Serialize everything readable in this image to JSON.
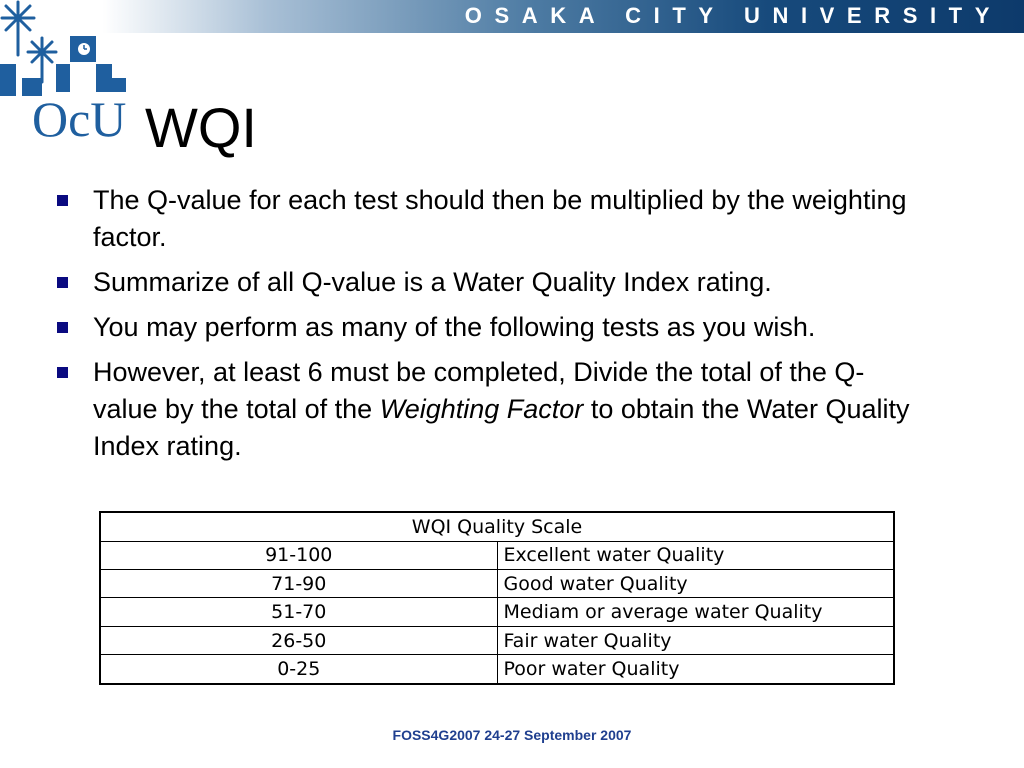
{
  "header": {
    "banner_text": "OSAKA CITY UNIVERSITY",
    "logo_text": "OcU",
    "logo_icon": "osaka-city-university-logo"
  },
  "slide": {
    "title": "WQI",
    "bullets": [
      {
        "text": "The Q-value for each test should then be multiplied by the weighting factor."
      },
      {
        "text": "Summarize of all Q-value is a Water Quality Index rating."
      },
      {
        "text": "You may perform as many of the following tests as you wish."
      },
      {
        "before": "However, at least 6 must be completed, Divide the total of the Q-value by the total of the ",
        "emphasis": "Weighting Factor",
        "after": " to obtain the Water Quality Index rating."
      }
    ]
  },
  "table": {
    "header": "WQI Quality Scale",
    "rows": [
      {
        "range": "91-100",
        "description": "Excellent water Quality"
      },
      {
        "range": "71-90",
        "description": "Good water Quality"
      },
      {
        "range": "51-70",
        "description": "Mediam or average water Quality"
      },
      {
        "range": "26-50",
        "description": "Fair water Quality"
      },
      {
        "range": "0-25",
        "description": "Poor water Quality"
      }
    ]
  },
  "footer": {
    "text": "FOSS4G2007 24-27 September 2007"
  },
  "colors": {
    "accent": "#0d3a6b",
    "bullet": "#0a0a80",
    "logo": "#1f5f9f",
    "footer": "#1f3f8f"
  }
}
